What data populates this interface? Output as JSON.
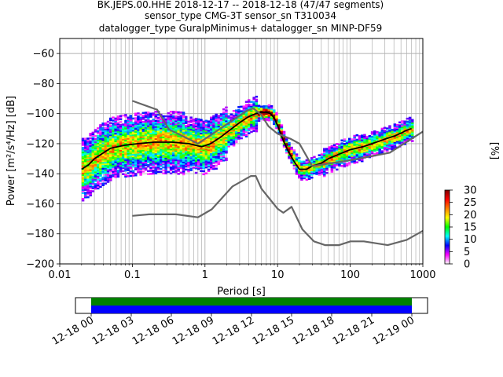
{
  "title_lines": [
    "BK.JEPS.00.HHE   2018-12-17 -- 2018-12-18  (47/47 segments)",
    "sensor_type CMG-3T sensor_sn T310034",
    "datalogger_type GuralpMinimus+ datalogger_sn MINP-DF59"
  ],
  "chart_data": [
    {
      "type": "heatmap",
      "xlabel": "Period [s]",
      "ylabel": "Power [m²/s⁴/Hz] [dB]",
      "x_scale": "log",
      "xlim": [
        0.01,
        1000
      ],
      "ylim": [
        -200,
        -50
      ],
      "x_tick_labels": [
        "0.01",
        "0.1",
        "1",
        "10",
        "100",
        "1000"
      ],
      "x_ticks": [
        0.01,
        0.1,
        1,
        10,
        100,
        1000
      ],
      "y_ticks": [
        -200,
        -180,
        -160,
        -140,
        -120,
        -100,
        -80,
        -60
      ],
      "y_tick_labels": [
        "−200",
        "−180",
        "−160",
        "−140",
        "−120",
        "−100",
        "−80",
        "−60"
      ],
      "grid": true,
      "colorbar": {
        "label": "[%]",
        "range": [
          0,
          30
        ],
        "ticks": [
          0,
          5,
          10,
          15,
          20,
          25,
          30
        ],
        "colors": [
          "#ffffff",
          "#ff00ff",
          "#0000ff",
          "#00ffff",
          "#00ff00",
          "#ffff00",
          "#ff8000",
          "#ff0000",
          "#800000"
        ]
      },
      "series": [
        {
          "name": "mean",
          "color": "#000000",
          "x": [
            0.02,
            0.025,
            0.03,
            0.05,
            0.08,
            0.12,
            0.2,
            0.35,
            0.6,
            0.9,
            1.2,
            1.6,
            2.2,
            3,
            4,
            5,
            6,
            7,
            8,
            9,
            10,
            12,
            14,
            16,
            18,
            20,
            25,
            30,
            40,
            50,
            70,
            100,
            150,
            200,
            300,
            400,
            500,
            600,
            700
          ],
          "y": [
            -137,
            -134,
            -130,
            -123,
            -121,
            -120,
            -119,
            -119,
            -120,
            -122,
            -120,
            -116,
            -111,
            -106,
            -102,
            -100,
            -99,
            -99,
            -100,
            -103,
            -108,
            -118,
            -125,
            -130,
            -134,
            -137,
            -137,
            -135,
            -133,
            -130,
            -127,
            -124,
            -122,
            -120,
            -117,
            -115,
            -113,
            -111,
            -110
          ]
        },
        {
          "name": "model-high",
          "color": "#666666",
          "x": [
            0.1,
            0.22,
            0.32,
            0.8,
            3.8,
            4.6,
            5,
            6,
            7.5,
            10,
            15,
            20,
            30,
            100,
            350,
            1000
          ],
          "y": [
            -91.5,
            -97.4,
            -110.5,
            -120,
            -98,
            -96.5,
            -97.7,
            -101,
            -108.5,
            -113.4,
            -116.7,
            -120,
            -135,
            -131,
            -126,
            -112
          ]
        },
        {
          "name": "model-low",
          "color": "#666666",
          "x": [
            0.1,
            0.17,
            0.4,
            0.8,
            1.24,
            2.4,
            4.3,
            5,
            6,
            10,
            12,
            15.6,
            21.9,
            31.6,
            45,
            70,
            101,
            154,
            328,
            600,
            1000
          ],
          "y": [
            -168,
            -167,
            -167,
            -169,
            -163.7,
            -148.4,
            -141.5,
            -141.5,
            -150,
            -163.3,
            -166,
            -162,
            -177,
            -185,
            -187.5,
            -187.5,
            -185,
            -185,
            -187.5,
            -184,
            -178
          ]
        }
      ]
    },
    {
      "type": "bar",
      "x_tick_labels": [
        "12-18 00",
        "12-18 03",
        "12-18 06",
        "12-18 09",
        "12-18 12",
        "12-18 15",
        "12-18 18",
        "12-18 21",
        "12-19 00"
      ],
      "bands": [
        {
          "color": "#008000",
          "start": "12-18 00",
          "end": "12-19 00"
        },
        {
          "color": "#0000ff",
          "start": "12-18 00",
          "end": "12-19 00"
        }
      ]
    }
  ]
}
